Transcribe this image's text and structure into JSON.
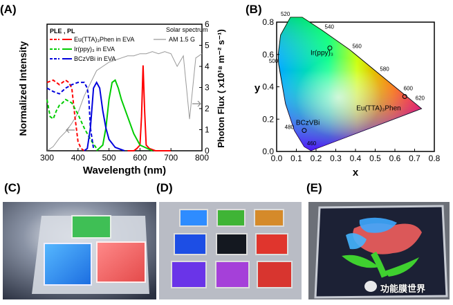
{
  "panels": {
    "A": "(A)",
    "B": "(B)",
    "C": "(C)",
    "D": "(D)",
    "E": "(E)"
  },
  "watermark": "功能膜世界",
  "chart_data": [
    {
      "type": "line",
      "panel": "A",
      "xlabel": "Wavelength (nm)",
      "ylabel": "Normalized Intensity",
      "y2label": "Photon Flux ( x10¹⁸ m⁻² s⁻¹)",
      "xlim": [
        300,
        800
      ],
      "xticks": [
        300,
        400,
        500,
        600,
        700,
        800
      ],
      "y2lim": [
        0,
        6
      ],
      "y2ticks": [
        0,
        1,
        2,
        3,
        4,
        5,
        6
      ],
      "legend_header": "PLE , PL",
      "legend_position": "top-left",
      "solar_label": "Solar spectrum",
      "solar_series": "AM 1.5 G",
      "series": [
        {
          "name": "Eu(TTA)₃Phen in EVA",
          "color": "#ff0000",
          "ple": {
            "x": [
              300,
              320,
              340,
              350,
              360,
              370,
              380,
              390,
              400,
              410,
              420
            ],
            "y": [
              0.6,
              0.62,
              0.58,
              0.6,
              0.62,
              0.6,
              0.55,
              0.3,
              0.08,
              0.02,
              0.0
            ]
          },
          "pl": {
            "x": [
              560,
              580,
              590,
              600,
              605,
              610,
              615,
              620,
              630,
              650,
              700
            ],
            "y": [
              0.0,
              0.0,
              0.02,
              0.05,
              0.3,
              0.75,
              0.35,
              0.05,
              0.02,
              0.0,
              0.0
            ]
          }
        },
        {
          "name": "Ir(ppy)₃ in EVA",
          "color": "#00cc00",
          "ple": {
            "x": [
              300,
              310,
              320,
              330,
              340,
              350,
              360,
              380,
              400,
              420,
              440,
              460
            ],
            "y": [
              0.45,
              0.3,
              0.28,
              0.35,
              0.4,
              0.42,
              0.45,
              0.42,
              0.32,
              0.2,
              0.1,
              0.02
            ]
          },
          "pl": {
            "x": [
              460,
              480,
              490,
              500,
              510,
              520,
              530,
              540,
              560,
              580,
              600,
              640
            ],
            "y": [
              0.0,
              0.05,
              0.2,
              0.45,
              0.6,
              0.62,
              0.55,
              0.45,
              0.3,
              0.15,
              0.05,
              0.0
            ]
          }
        },
        {
          "name": "BCzVBi in EVA",
          "color": "#0000dd",
          "ple": {
            "x": [
              300,
              320,
              340,
              360,
              380,
              400,
              420,
              430,
              435,
              440,
              450
            ],
            "y": [
              0.55,
              0.52,
              0.5,
              0.55,
              0.58,
              0.6,
              0.6,
              0.55,
              0.45,
              0.2,
              0.02
            ]
          },
          "pl": {
            "x": [
              420,
              430,
              440,
              450,
              460,
              470,
              480,
              490,
              500,
              520,
              550
            ],
            "y": [
              0.0,
              0.02,
              0.2,
              0.55,
              0.6,
              0.55,
              0.35,
              0.2,
              0.1,
              0.03,
              0.0
            ]
          }
        }
      ],
      "solar": {
        "x": [
          300,
          320,
          340,
          360,
          380,
          400,
          420,
          440,
          460,
          480,
          500,
          520,
          540,
          560,
          580,
          600,
          620,
          640,
          660,
          680,
          700,
          720,
          740,
          760,
          780,
          800
        ],
        "y": [
          0.0,
          0.2,
          0.6,
          0.9,
          1.3,
          1.8,
          2.6,
          3.2,
          3.8,
          4.0,
          4.2,
          4.3,
          4.4,
          4.5,
          4.5,
          4.6,
          4.6,
          4.7,
          4.6,
          4.7,
          4.6,
          4.0,
          4.5,
          1.5,
          4.4,
          4.6
        ]
      }
    },
    {
      "type": "scatter",
      "panel": "B",
      "xlabel": "x",
      "ylabel": "y",
      "xlim": [
        0.0,
        0.8
      ],
      "ylim": [
        0.0,
        0.8
      ],
      "xticks": [
        0.0,
        0.1,
        0.2,
        0.3,
        0.4,
        0.5,
        0.6,
        0.7,
        0.8
      ],
      "yticks": [
        0.0,
        0.2,
        0.4,
        0.6,
        0.8
      ],
      "locus_labels": [
        {
          "nm": "460",
          "x": 0.14,
          "y": 0.03
        },
        {
          "nm": "480",
          "x": 0.09,
          "y": 0.13
        },
        {
          "nm": "500",
          "x": 0.01,
          "y": 0.54
        },
        {
          "nm": "520",
          "x": 0.07,
          "y": 0.83
        },
        {
          "nm": "540",
          "x": 0.23,
          "y": 0.75
        },
        {
          "nm": "560",
          "x": 0.37,
          "y": 0.63
        },
        {
          "nm": "580",
          "x": 0.51,
          "y": 0.49
        },
        {
          "nm": "600",
          "x": 0.63,
          "y": 0.37
        },
        {
          "nm": "620",
          "x": 0.69,
          "y": 0.31
        }
      ],
      "points": [
        {
          "label": "Ir(ppy)₃",
          "x": 0.27,
          "y": 0.64
        },
        {
          "label": "Eu(TTA)₃Phen",
          "x": 0.65,
          "y": 0.34
        },
        {
          "label": "BCzVBi",
          "x": 0.14,
          "y": 0.13
        }
      ]
    }
  ]
}
